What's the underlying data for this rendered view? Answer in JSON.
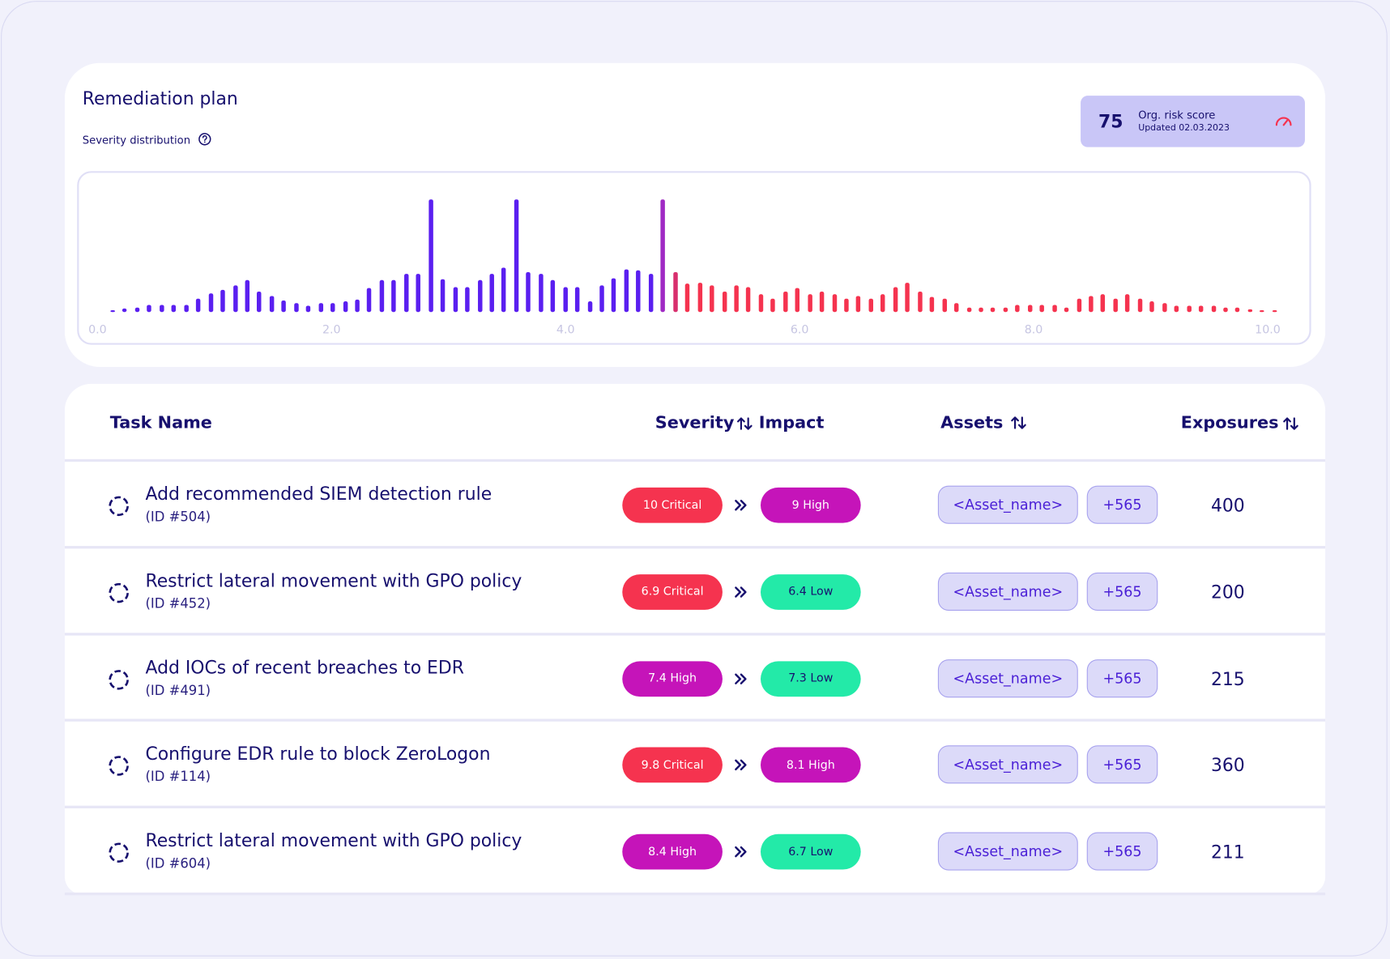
{
  "header": {
    "title": "Remediation plan",
    "subtitle": "Severity distribution"
  },
  "risk_score": {
    "value": "75",
    "label": "Org. risk score",
    "updated": "Updated 02.03.2023"
  },
  "chart_data": {
    "type": "bar",
    "x": [
      0.13,
      0.23,
      0.34,
      0.44,
      0.55,
      0.65,
      0.76,
      0.86,
      0.97,
      1.07,
      1.18,
      1.28,
      1.38,
      1.49,
      1.59,
      1.7,
      1.8,
      1.91,
      2.01,
      2.12,
      2.22,
      2.32,
      2.43,
      2.53,
      2.64,
      2.74,
      2.85,
      2.95,
      3.06,
      3.16,
      3.27,
      3.37,
      3.47,
      3.58,
      3.68,
      3.79,
      3.89,
      4.0,
      4.1,
      4.21,
      4.31,
      4.41,
      4.52,
      4.62,
      4.73,
      4.83,
      4.94,
      5.04,
      5.15,
      5.25,
      5.36,
      5.46,
      5.56,
      5.67,
      5.77,
      5.88,
      5.98,
      6.09,
      6.19,
      6.3,
      6.4,
      6.5,
      6.61,
      6.71,
      6.82,
      6.92,
      7.03,
      7.13,
      7.24,
      7.34,
      7.45,
      7.55,
      7.65,
      7.76,
      7.86,
      7.97,
      8.07,
      8.18,
      8.28,
      8.39,
      8.49,
      8.59,
      8.7,
      8.8,
      8.91,
      9.01,
      9.12,
      9.22,
      9.33,
      9.43,
      9.54,
      9.64,
      9.74,
      9.85,
      9.95,
      10.06
    ],
    "values": [
      2,
      4,
      5,
      8,
      8,
      8,
      8,
      15,
      21,
      25,
      30,
      36,
      23,
      18,
      13,
      10,
      7,
      10,
      10,
      12,
      14,
      27,
      36,
      36,
      43,
      43,
      127,
      37,
      28,
      28,
      36,
      43,
      50,
      127,
      45,
      43,
      36,
      28,
      28,
      12,
      30,
      38,
      48,
      47,
      43,
      127,
      45,
      32,
      33,
      30,
      23,
      30,
      28,
      20,
      15,
      23,
      27,
      20,
      23,
      20,
      15,
      18,
      15,
      20,
      28,
      33,
      23,
      17,
      15,
      10,
      5,
      5,
      5,
      5,
      8,
      8,
      8,
      8,
      5,
      15,
      18,
      20,
      15,
      20,
      15,
      12,
      10,
      7,
      7,
      7,
      7,
      5,
      5,
      3,
      2,
      1
    ],
    "colors": [
      "#5a1ff0",
      "#5a1ff0",
      "#5a1ff0",
      "#5a1ff0",
      "#5a1ff0",
      "#5a1ff0",
      "#5a1ff0",
      "#5a1ff0",
      "#5a1ff0",
      "#5a1ff0",
      "#5a1ff0",
      "#5a1ff0",
      "#5a1ff0",
      "#5a1ff0",
      "#5a1ff0",
      "#5a1ff0",
      "#5a1ff0",
      "#5a1ff0",
      "#5a1ff0",
      "#5a1ff0",
      "#5a1ff0",
      "#5a1ff0",
      "#5a1ff0",
      "#5a1ff0",
      "#5a1ff0",
      "#5a1ff0",
      "#5a1ff0",
      "#5a1ff0",
      "#5a1ff0",
      "#5a1ff0",
      "#5a1ff0",
      "#5a1ff0",
      "#5a1ff0",
      "#5a1ff0",
      "#5a1ff0",
      "#5a1ff0",
      "#5a1ff0",
      "#5a1ff0",
      "#5a1ff0",
      "#5a1ff0",
      "#5a1ff0",
      "#5a1ff0",
      "#5a1ff0",
      "#5a1ff0",
      "#5a1ff0",
      "#a02ac4",
      "#d8306e",
      "#f5334f",
      "#f5334f",
      "#f5334f",
      "#f5334f",
      "#f5334f",
      "#f5334f",
      "#f5334f",
      "#f5334f",
      "#f5334f",
      "#f5334f",
      "#f5334f",
      "#f5334f",
      "#f5334f",
      "#f5334f",
      "#f5334f",
      "#f5334f",
      "#f5334f",
      "#f5334f",
      "#f5334f",
      "#f5334f",
      "#f5334f",
      "#f5334f",
      "#f5334f",
      "#f5334f",
      "#f5334f",
      "#f5334f",
      "#f5334f",
      "#f5334f",
      "#f5334f",
      "#f5334f",
      "#f5334f",
      "#f5334f",
      "#f5334f",
      "#f5334f",
      "#f5334f",
      "#f5334f",
      "#f5334f",
      "#f5334f",
      "#f5334f",
      "#f5334f",
      "#f5334f",
      "#f5334f",
      "#f5334f",
      "#f5334f",
      "#f5334f",
      "#f5334f",
      "#f5334f",
      "#f5334f",
      "#f5334f"
    ],
    "xlim": [
      0,
      10
    ],
    "ylim": [
      0,
      130
    ],
    "xticks": [
      {
        "value": 0,
        "label": "0.0"
      },
      {
        "value": 2,
        "label": "2.0"
      },
      {
        "value": 4,
        "label": "4.0"
      },
      {
        "value": 6,
        "label": "6.0"
      },
      {
        "value": 8,
        "label": "8.0"
      },
      {
        "value": 10,
        "label": "10.0"
      }
    ]
  },
  "table": {
    "columns": [
      "Task Name",
      "Severity",
      "Impact",
      "Assets",
      "Exposures"
    ],
    "rows": [
      {
        "task": "Add recommended SIEM detection rule",
        "id": "(ID #504)",
        "severity": {
          "label": "10 Critical",
          "color": "#f5334f"
        },
        "impact": {
          "label": "9 High",
          "color": "#c514b9"
        },
        "asset": "<Asset_name>",
        "more": "+565",
        "exposures": "400"
      },
      {
        "task": "Restrict lateral movement with GPO policy",
        "id": "(ID #452)",
        "severity": {
          "label": "6.9 Critical",
          "color": "#f5334f"
        },
        "impact": {
          "label": "6.4 Low",
          "color": "#23eaa8"
        },
        "asset": "<Asset_name>",
        "more": "+565",
        "exposures": "200"
      },
      {
        "task": "Add IOCs of recent breaches to EDR",
        "id": "(ID #491)",
        "severity": {
          "label": "7.4 High",
          "color": "#c514b9"
        },
        "impact": {
          "label": "7.3 Low",
          "color": "#23eaa8"
        },
        "asset": "<Asset_name>",
        "more": "+565",
        "exposures": "215"
      },
      {
        "task": "Configure EDR rule to block ZeroLogon",
        "id": "(ID #114)",
        "severity": {
          "label": "9.8 Critical",
          "color": "#f5334f"
        },
        "impact": {
          "label": "8.1 High",
          "color": "#c514b9"
        },
        "asset": "<Asset_name>",
        "more": "+565",
        "exposures": "360"
      },
      {
        "task": "Restrict lateral movement with GPO policy",
        "id": "(ID #604)",
        "severity": {
          "label": "8.4 High",
          "color": "#c514b9"
        },
        "impact": {
          "label": "6.7 Low",
          "color": "#23eaa8"
        },
        "asset": "<Asset_name>",
        "more": "+565",
        "exposures": "211"
      }
    ]
  }
}
